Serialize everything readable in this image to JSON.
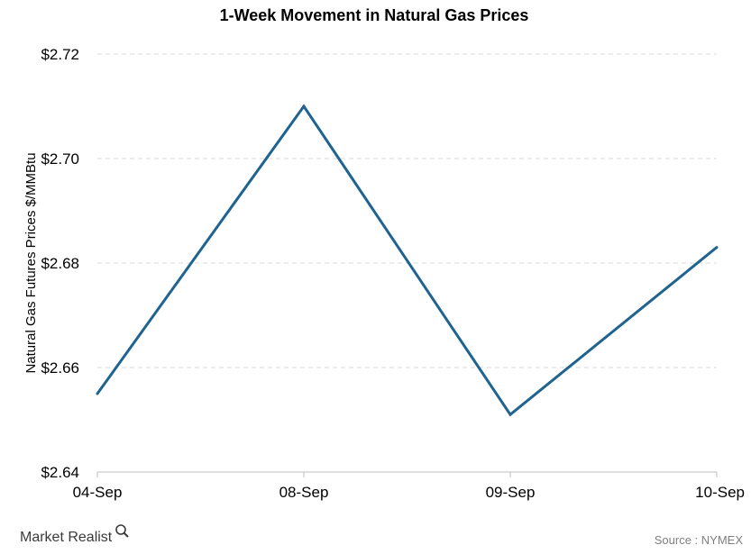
{
  "chart_data": {
    "type": "line",
    "title": "1-Week Movement in Natural Gas Prices",
    "xlabel": "",
    "ylabel": "Natural Gas Futures Prices $/MMBtu",
    "categories": [
      "04-Sep",
      "08-Sep",
      "09-Sep",
      "10-Sep"
    ],
    "series": [
      {
        "values": [
          2.655,
          2.71,
          2.651,
          2.683
        ]
      }
    ],
    "ylim": [
      2.64,
      2.72
    ],
    "yticks": [
      2.64,
      2.66,
      2.68,
      2.7,
      2.72
    ],
    "ytick_labels": [
      "$2.64",
      "$2.66",
      "$2.68",
      "$2.70",
      "$2.72"
    ],
    "grid": true,
    "line_color": "#1f6391"
  },
  "footer": {
    "brand": "Market Realist",
    "brand_icon": "magnifier-icon",
    "source": "Source : NYMEX"
  }
}
